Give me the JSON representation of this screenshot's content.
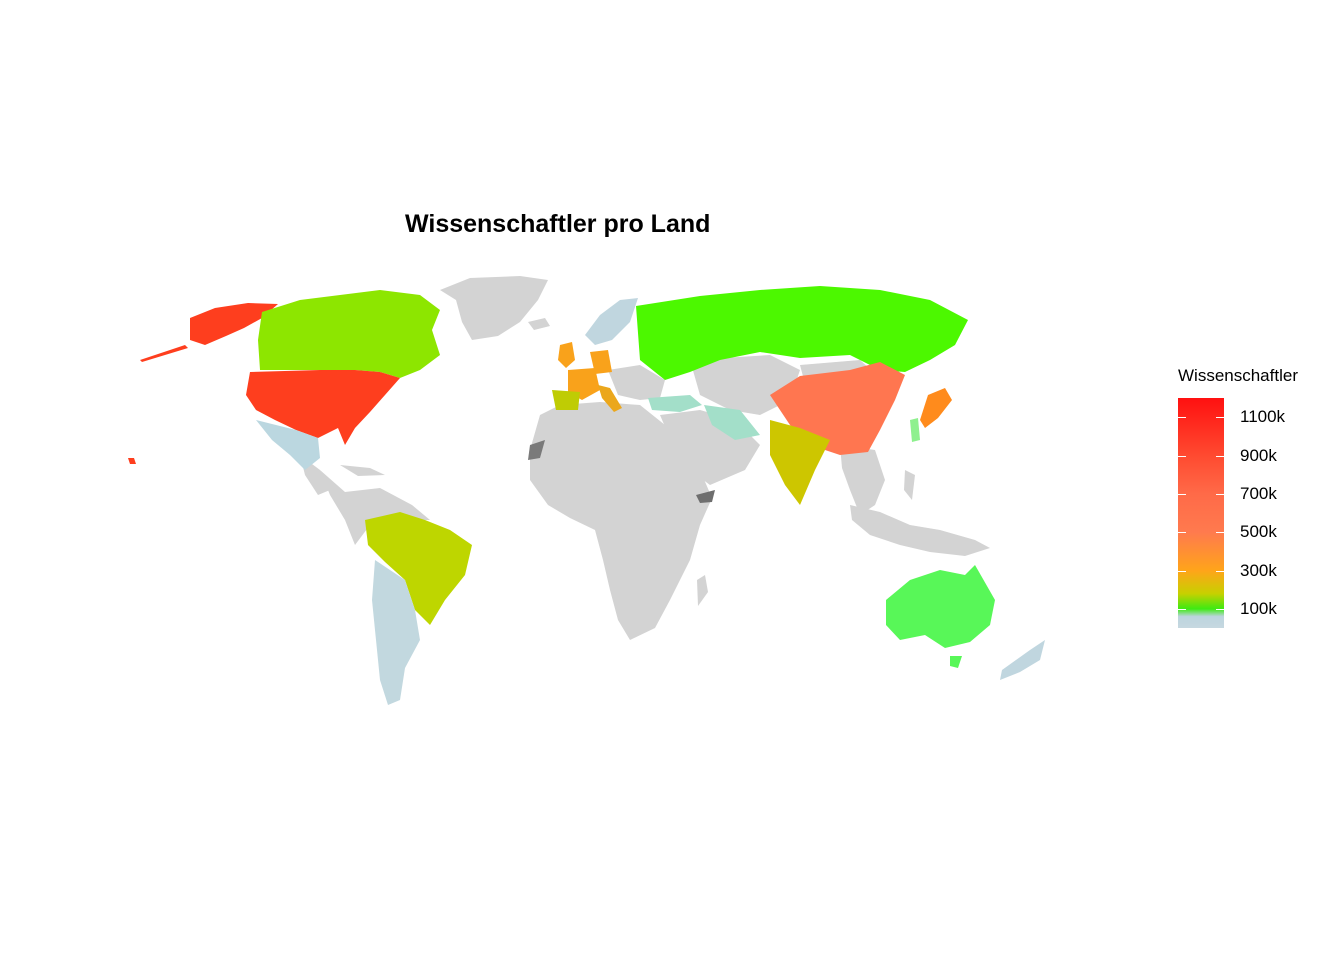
{
  "title": "Wissenschaftler pro Land",
  "legend": {
    "title": "Wissenschaftler",
    "ticks": [
      {
        "label": "1100k",
        "value": 1100000
      },
      {
        "label": "900k",
        "value": 900000
      },
      {
        "label": "700k",
        "value": 700000
      },
      {
        "label": "500k",
        "value": 500000
      },
      {
        "label": "300k",
        "value": 300000
      },
      {
        "label": "100k",
        "value": 100000
      }
    ],
    "range": [
      0,
      1200000
    ],
    "gradient": [
      {
        "value": 0,
        "color": "#c6d8e0"
      },
      {
        "value": 60000,
        "color": "#bcd4de"
      },
      {
        "value": 100000,
        "color": "#3eea12"
      },
      {
        "value": 180000,
        "color": "#c8d000"
      },
      {
        "value": 300000,
        "color": "#ffa41a"
      },
      {
        "value": 500000,
        "color": "#ff7a4e"
      },
      {
        "value": 700000,
        "color": "#ff6a48"
      },
      {
        "value": 900000,
        "color": "#ff4a30"
      },
      {
        "value": 1200000,
        "color": "#ff1010"
      }
    ]
  },
  "map_data": {
    "type": "choropleth",
    "fill_variable": "Wissenschaftler",
    "no_data_color": "#d3d3d3",
    "regions": [
      {
        "name": "USA",
        "color": "#fe3e1e"
      },
      {
        "name": "Canada",
        "color": "#8de600"
      },
      {
        "name": "Russia",
        "color": "#4cf800"
      },
      {
        "name": "China",
        "color": "#ff7650"
      },
      {
        "name": "Japan",
        "color": "#ff8b1c"
      },
      {
        "name": "India",
        "color": "#cdc600"
      },
      {
        "name": "Brazil",
        "color": "#bed600"
      },
      {
        "name": "Australia",
        "color": "#58f758"
      },
      {
        "name": "Germany",
        "color": "#f9a21b"
      },
      {
        "name": "France",
        "color": "#f9a21b"
      },
      {
        "name": "UK",
        "color": "#f9a21b"
      },
      {
        "name": "Spain",
        "color": "#bfcc04"
      },
      {
        "name": "Italy",
        "color": "#eba71c"
      },
      {
        "name": "Turkey",
        "color": "#a3dfc9"
      },
      {
        "name": "Iran",
        "color": "#a3dfc9"
      },
      {
        "name": "Mexico",
        "color": "#bbd7e0"
      },
      {
        "name": "Argentina",
        "color": "#c2d8df"
      },
      {
        "name": "Scandinavia",
        "color": "#c0d6df"
      },
      {
        "name": "South Korea",
        "color": "#8ef08e"
      }
    ]
  }
}
